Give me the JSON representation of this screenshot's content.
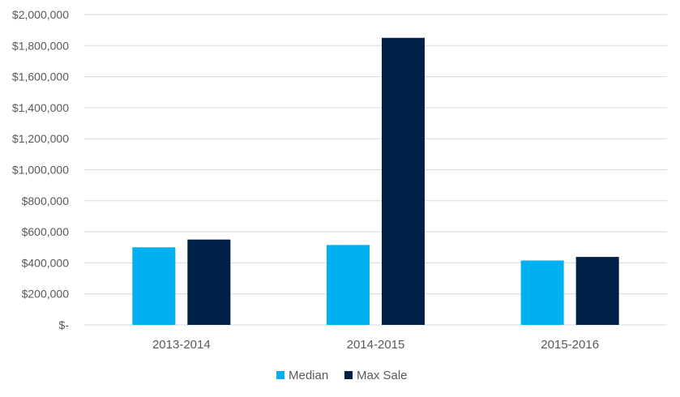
{
  "chart_data": {
    "type": "bar",
    "categories": [
      "2013-2014",
      "2014-2015",
      "2015-2016"
    ],
    "series": [
      {
        "name": "Median",
        "values": [
          500000,
          515000,
          415000
        ],
        "color": "#00B0F0"
      },
      {
        "name": "Max Sale",
        "values": [
          550000,
          1850000,
          438000
        ],
        "color": "#002147"
      }
    ],
    "ylim": [
      0,
      2000000
    ],
    "yticks": [
      {
        "value": 0,
        "label": "$-"
      },
      {
        "value": 200000,
        "label": "$200,000"
      },
      {
        "value": 400000,
        "label": "$400,000"
      },
      {
        "value": 600000,
        "label": "$600,000"
      },
      {
        "value": 800000,
        "label": "$800,000"
      },
      {
        "value": 1000000,
        "label": "$1,000,000"
      },
      {
        "value": 1200000,
        "label": "$1,200,000"
      },
      {
        "value": 1400000,
        "label": "$1,400,000"
      },
      {
        "value": 1600000,
        "label": "$1,600,000"
      },
      {
        "value": 1800000,
        "label": "$1,800,000"
      },
      {
        "value": 2000000,
        "label": "$2,000,000"
      }
    ],
    "grid": true,
    "legend": "bottom",
    "gridColor": "#D9D9D9"
  }
}
